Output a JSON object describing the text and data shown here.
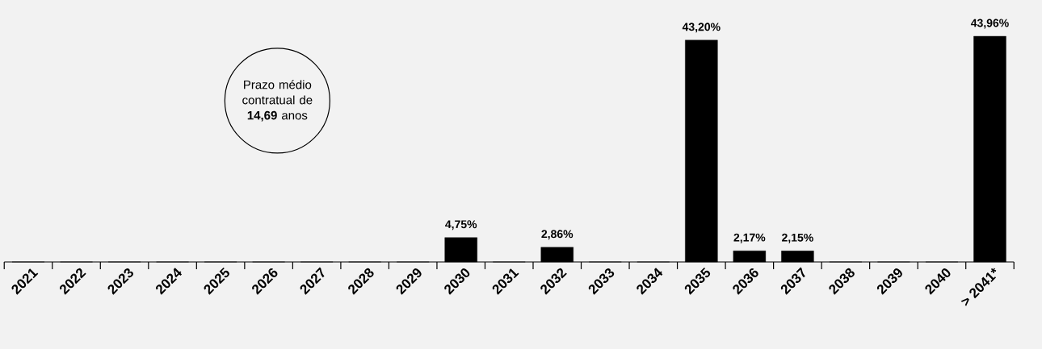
{
  "chart_data": {
    "type": "bar",
    "categories": [
      "2021",
      "2022",
      "2023",
      "2024",
      "2025",
      "2026",
      "2027",
      "2028",
      "2029",
      "2030",
      "2031",
      "2032",
      "2033",
      "2034",
      "2035",
      "2036",
      "2037",
      "2038",
      "2039",
      "2040",
      "> 2041*"
    ],
    "values": [
      0,
      0,
      0,
      0,
      0,
      0,
      0,
      0,
      0,
      4.75,
      0,
      2.86,
      0,
      0,
      43.2,
      2.17,
      2.15,
      0,
      0,
      0,
      43.96
    ],
    "value_labels": [
      null,
      null,
      null,
      null,
      null,
      null,
      null,
      null,
      null,
      "4,75%",
      null,
      "2,86%",
      null,
      null,
      "43,20%",
      "2,17%",
      "2,15%",
      null,
      null,
      null,
      "43,96%"
    ],
    "color": "#000000",
    "annotations": [
      "Prazo médio contratual de **14,69** anos"
    ]
  }
}
